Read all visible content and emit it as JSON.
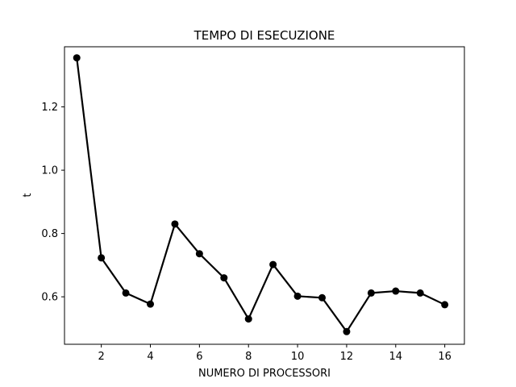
{
  "chart_data": {
    "type": "line",
    "title": "TEMPO DI ESECUZIONE",
    "xlabel": "NUMERO DI PROCESSORI",
    "ylabel": "t",
    "xlim": [
      0.5,
      16.8
    ],
    "ylim": [
      0.45,
      1.39
    ],
    "xticks": [
      2,
      4,
      6,
      8,
      10,
      12,
      14,
      16
    ],
    "yticks": [
      0.6,
      0.8,
      1.0,
      1.2
    ],
    "ytick_labels": [
      "0.6",
      "0.8",
      "1.0",
      "1.2"
    ],
    "grid": false,
    "series": [
      {
        "color": "#000000",
        "marker": "circle",
        "x": [
          1,
          2,
          3,
          4,
          5,
          6,
          7,
          8,
          9,
          10,
          11,
          12,
          13,
          14,
          15,
          16
        ],
        "y": [
          1.355,
          0.723,
          0.612,
          0.577,
          0.83,
          0.736,
          0.66,
          0.53,
          0.702,
          0.602,
          0.597,
          0.49,
          0.612,
          0.618,
          0.612,
          0.575
        ]
      }
    ]
  }
}
